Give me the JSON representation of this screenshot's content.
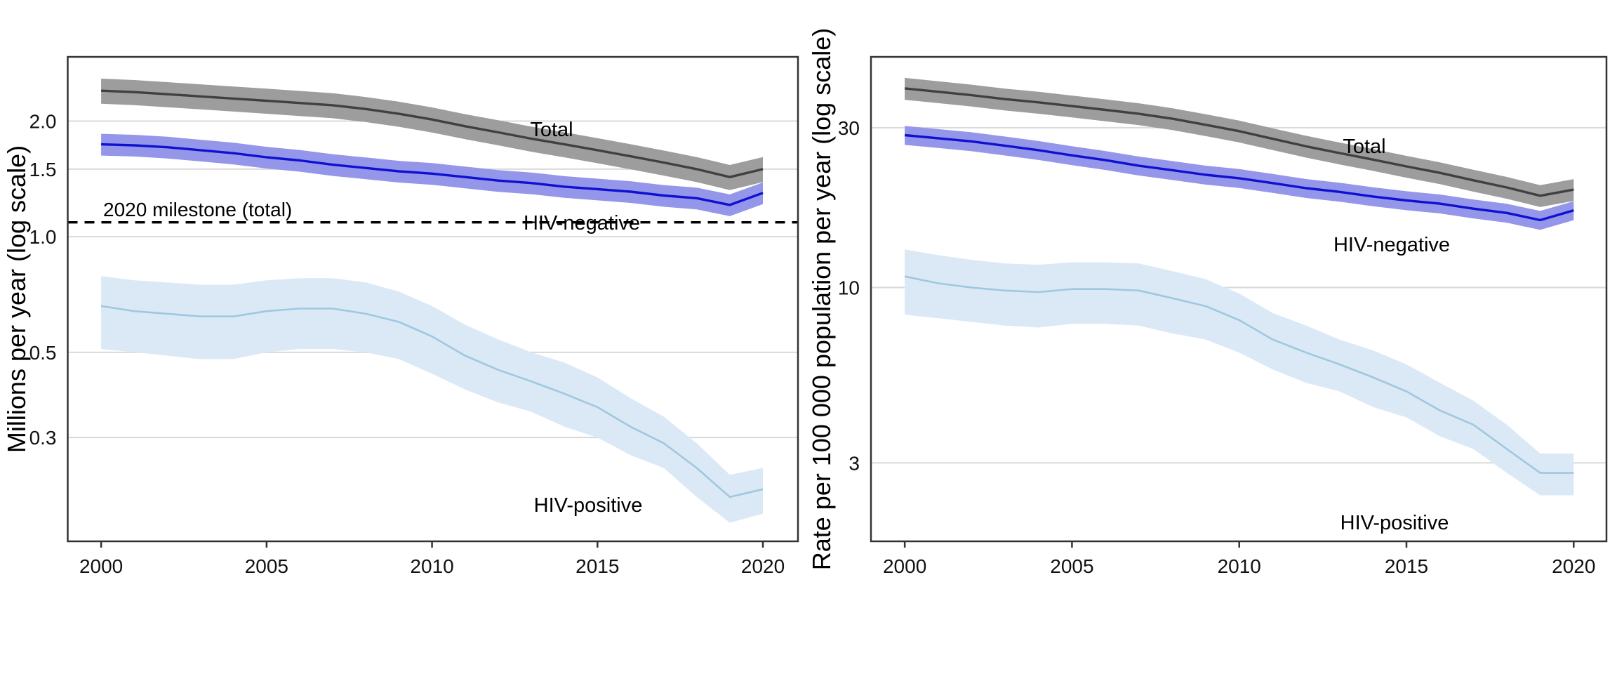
{
  "figure": {
    "background": "#ffffff",
    "grid_color": "#d9d9d9",
    "border_color": "#333333",
    "tick_color": "#333333",
    "milestone_color": "#000000"
  },
  "chart_data": [
    {
      "type": "line",
      "panel": "left",
      "title": "",
      "ylabel": "Millions per year (log scale)",
      "xlabel": "",
      "grid": true,
      "x": [
        2000,
        2001,
        2002,
        2003,
        2004,
        2005,
        2006,
        2007,
        2008,
        2009,
        2010,
        2011,
        2012,
        2013,
        2014,
        2015,
        2016,
        2017,
        2018,
        2019,
        2020
      ],
      "x_ticks": [
        "2000",
        "2005",
        "2010",
        "2015",
        "2020"
      ],
      "y_ticks": [
        {
          "value": 2.0,
          "label": "2.0"
        },
        {
          "value": 1.5,
          "label": "1.5"
        },
        {
          "value": 1.0,
          "label": "1.0"
        },
        {
          "value": 0.5,
          "label": "0.5"
        },
        {
          "value": 0.3,
          "label": "0.3"
        }
      ],
      "ylim": [
        0.161,
        2.94
      ],
      "xlim": [
        1998.99,
        2021.06
      ],
      "milestone": {
        "label": "2020 milestone (total)",
        "value": 1.09,
        "line_style": "dashed"
      },
      "series": [
        {
          "name": "total",
          "label": "Total",
          "color": "#404040",
          "band_color": "#9d9d9d",
          "band_pct": {
            "up": 7.5,
            "dn": 7.5
          },
          "values": [
            2.4,
            2.38,
            2.35,
            2.32,
            2.29,
            2.26,
            2.23,
            2.2,
            2.15,
            2.09,
            2.02,
            1.94,
            1.87,
            1.8,
            1.74,
            1.68,
            1.62,
            1.56,
            1.5,
            1.43,
            1.5
          ]
        },
        {
          "name": "hiv_negative",
          "label": "HIV-negative",
          "color": "#1010d0",
          "band_color": "#9496ea",
          "band_pct": {
            "up": 6.5,
            "dn": 6.5
          },
          "values": [
            1.74,
            1.73,
            1.71,
            1.68,
            1.65,
            1.61,
            1.58,
            1.54,
            1.51,
            1.48,
            1.46,
            1.43,
            1.4,
            1.38,
            1.35,
            1.33,
            1.31,
            1.28,
            1.26,
            1.21,
            1.3
          ]
        },
        {
          "name": "hiv_positive",
          "label": "HIV-positive",
          "color": "#9fc8e0",
          "band_color": "#dbe9f6",
          "band_lo": [
            0.51,
            0.5,
            0.49,
            0.48,
            0.48,
            0.5,
            0.51,
            0.51,
            0.5,
            0.48,
            0.44,
            0.4,
            0.37,
            0.35,
            0.32,
            0.3,
            0.27,
            0.25,
            0.21,
            0.18,
            0.19
          ],
          "band_hi": [
            0.79,
            0.77,
            0.76,
            0.75,
            0.75,
            0.77,
            0.78,
            0.78,
            0.76,
            0.72,
            0.66,
            0.59,
            0.54,
            0.5,
            0.47,
            0.43,
            0.38,
            0.34,
            0.29,
            0.24,
            0.25
          ],
          "values": [
            0.66,
            0.64,
            0.63,
            0.62,
            0.62,
            0.64,
            0.65,
            0.65,
            0.63,
            0.6,
            0.55,
            0.49,
            0.45,
            0.42,
            0.39,
            0.36,
            0.32,
            0.29,
            0.25,
            0.21,
            0.22
          ]
        }
      ]
    },
    {
      "type": "line",
      "panel": "right",
      "title": "",
      "ylabel": "Rate per 100 000 population per year (log scale)",
      "xlabel": "",
      "grid": true,
      "x": [
        2000,
        2001,
        2002,
        2003,
        2004,
        2005,
        2006,
        2007,
        2008,
        2009,
        2010,
        2011,
        2012,
        2013,
        2014,
        2015,
        2016,
        2017,
        2018,
        2019,
        2020
      ],
      "x_ticks": [
        "2000",
        "2005",
        "2010",
        "2015",
        "2020"
      ],
      "y_ticks": [
        {
          "value": 30,
          "label": "30"
        },
        {
          "value": 10,
          "label": "10"
        },
        {
          "value": 3,
          "label": "3"
        }
      ],
      "ylim": [
        1.75,
        48.8
      ],
      "xlim": [
        1998.99,
        2020.98
      ],
      "series": [
        {
          "name": "total",
          "label": "Total",
          "color": "#404040",
          "band_color": "#9d9d9d",
          "band_pct": {
            "up": 7.5,
            "dn": 7.5
          },
          "values": [
            39.3,
            38.4,
            37.5,
            36.5,
            35.7,
            34.8,
            33.9,
            33.0,
            31.9,
            30.6,
            29.3,
            27.8,
            26.4,
            25.2,
            24.1,
            23.0,
            22.0,
            20.9,
            19.9,
            18.8,
            19.6
          ]
        },
        {
          "name": "hiv_negative",
          "label": "HIV-negative",
          "color": "#1010d0",
          "band_color": "#9496ea",
          "band_pct": {
            "up": 6.5,
            "dn": 6.5
          },
          "values": [
            28.5,
            27.9,
            27.3,
            26.5,
            25.7,
            24.8,
            24.0,
            23.1,
            22.4,
            21.7,
            21.2,
            20.5,
            19.8,
            19.3,
            18.7,
            18.2,
            17.8,
            17.2,
            16.7,
            15.9,
            17.0
          ]
        },
        {
          "name": "hiv_positive",
          "label": "HIV-positive",
          "color": "#9fc8e0",
          "band_color": "#dbe9f6",
          "band_lo": [
            8.3,
            8.1,
            7.9,
            7.7,
            7.6,
            7.8,
            7.8,
            7.7,
            7.3,
            7.0,
            6.4,
            5.7,
            5.2,
            4.9,
            4.4,
            4.1,
            3.6,
            3.3,
            2.8,
            2.4,
            2.4
          ],
          "band_hi": [
            13.0,
            12.5,
            12.1,
            11.8,
            11.7,
            11.9,
            11.9,
            11.8,
            11.2,
            10.6,
            9.6,
            8.4,
            7.7,
            7.0,
            6.5,
            5.9,
            5.2,
            4.6,
            3.9,
            3.2,
            3.2
          ],
          "values": [
            10.8,
            10.3,
            10.0,
            9.8,
            9.7,
            9.9,
            9.9,
            9.8,
            9.3,
            8.8,
            8.0,
            7.0,
            6.4,
            5.9,
            5.4,
            4.9,
            4.3,
            3.9,
            3.3,
            2.8,
            2.8
          ]
        }
      ]
    }
  ]
}
